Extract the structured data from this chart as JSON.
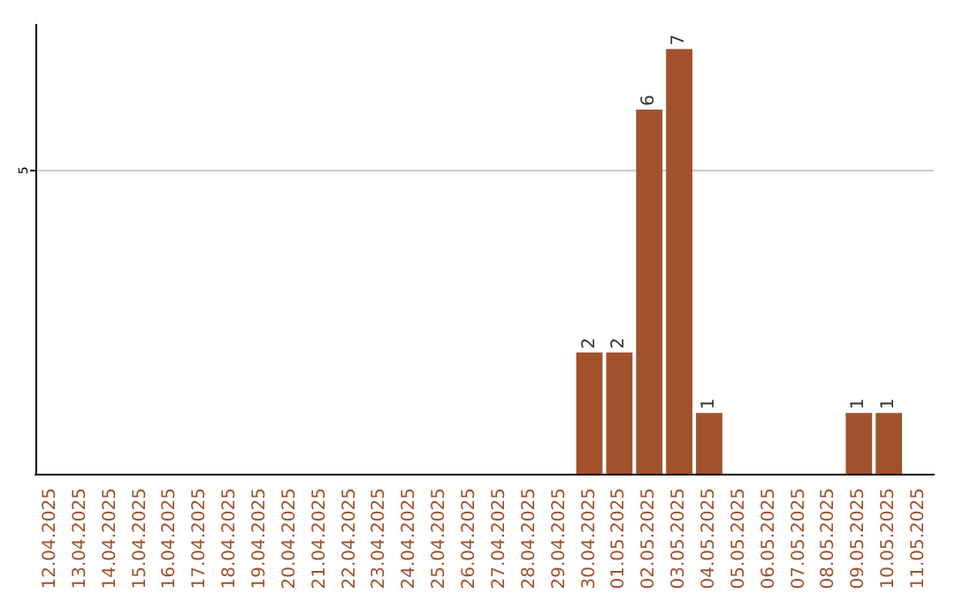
{
  "chart_data": {
    "type": "bar",
    "categories": [
      "12.04.2025",
      "13.04.2025",
      "14.04.2025",
      "15.04.2025",
      "16.04.2025",
      "17.04.2025",
      "18.04.2025",
      "19.04.2025",
      "20.04.2025",
      "21.04.2025",
      "22.04.2025",
      "23.04.2025",
      "24.04.2025",
      "25.04.2025",
      "26.04.2025",
      "27.04.2025",
      "28.04.2025",
      "29.04.2025",
      "30.04.2025",
      "01.05.2025",
      "02.05.2025",
      "03.05.2025",
      "04.05.2025",
      "05.05.2025",
      "06.05.2025",
      "07.05.2025",
      "08.05.2025",
      "09.05.2025",
      "10.05.2025",
      "11.05.2025"
    ],
    "values": [
      null,
      null,
      null,
      null,
      null,
      null,
      null,
      null,
      null,
      null,
      null,
      null,
      null,
      null,
      null,
      null,
      null,
      null,
      2,
      2,
      6,
      7,
      1,
      null,
      null,
      null,
      null,
      1,
      1,
      null
    ],
    "data_labels": true,
    "color": "#a0522d",
    "ylim": [
      0,
      7.4
    ],
    "yticks": [
      5
    ],
    "grid": "y"
  }
}
